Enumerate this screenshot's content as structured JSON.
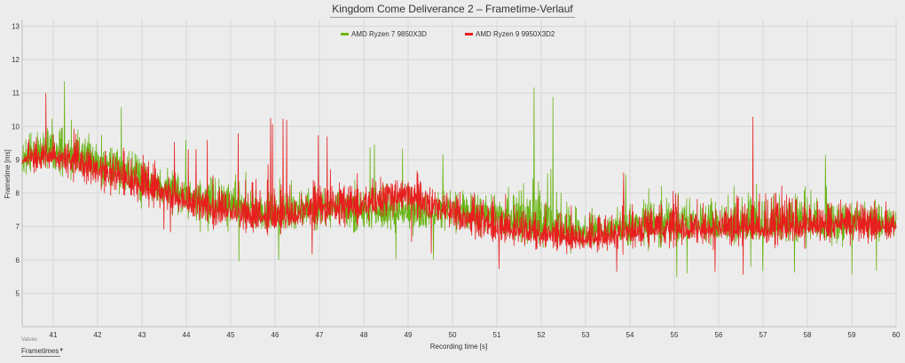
{
  "chart_data": {
    "type": "line",
    "title": "Kingdom Come Deliverance 2 – Frametime-Verlauf",
    "xlabel": "Recording time [s]",
    "ylabel": "Frametime [ms]",
    "xlim": [
      40.3,
      60
    ],
    "ylim": [
      4,
      13.2
    ],
    "xticks": [
      41,
      42,
      43,
      44,
      45,
      46,
      47,
      48,
      49,
      50,
      51,
      52,
      53,
      54,
      55,
      56,
      57,
      58,
      59,
      60
    ],
    "yticks": [
      5,
      6,
      7,
      8,
      9,
      10,
      11,
      12,
      13
    ],
    "grid": true,
    "legend_position": "top-center",
    "series": [
      {
        "name": "AMD Ryzen 7 9850X3D",
        "color": "#6ab416",
        "x": [
          40.3,
          41,
          42,
          43,
          44,
          45,
          46,
          47,
          48,
          49,
          50,
          51,
          52,
          53,
          54,
          55,
          56,
          57,
          58,
          59,
          60
        ],
        "mean": [
          9.1,
          9.2,
          8.9,
          8.4,
          7.9,
          7.6,
          7.4,
          7.6,
          7.5,
          7.4,
          7.5,
          7.3,
          6.9,
          6.8,
          7.0,
          7.1,
          7.0,
          7.0,
          7.1,
          7.2,
          7.1
        ],
        "min": [
          7.6,
          7.5,
          7.2,
          6.6,
          6.2,
          5.9,
          5.9,
          6.0,
          5.8,
          5.9,
          5.8,
          5.4,
          5.5,
          5.5,
          5.6,
          5.4,
          5.6,
          5.6,
          5.6,
          5.5,
          5.8
        ],
        "max": [
          10.9,
          11.7,
          11.0,
          10.3,
          9.6,
          10.1,
          9.5,
          9.4,
          9.5,
          9.5,
          9.2,
          8.9,
          12.0,
          8.6,
          8.7,
          9.5,
          9.3,
          10.1,
          9.3,
          9.1,
          8.6
        ]
      },
      {
        "name": "AMD Ryzen 9 9950X3D2",
        "color": "#e81e1e",
        "x": [
          40.3,
          41,
          42,
          43,
          44,
          45,
          46,
          47,
          48,
          49,
          50,
          51,
          52,
          53,
          54,
          55,
          56,
          57,
          58,
          59,
          60
        ],
        "mean": [
          9.0,
          9.1,
          8.7,
          8.2,
          7.7,
          7.4,
          7.2,
          7.5,
          7.6,
          8.0,
          7.4,
          7.0,
          6.7,
          6.6,
          6.8,
          6.9,
          6.9,
          6.9,
          7.0,
          7.1,
          7.0
        ],
        "min": [
          7.9,
          7.8,
          7.3,
          7.0,
          6.6,
          6.1,
          6.0,
          6.1,
          6.3,
          6.4,
          6.0,
          5.7,
          5.6,
          5.6,
          5.6,
          5.7,
          5.5,
          5.6,
          5.7,
          5.6,
          5.9
        ],
        "max": [
          10.8,
          11.1,
          10.6,
          10.5,
          9.4,
          9.8,
          10.3,
          9.9,
          9.9,
          9.8,
          9.2,
          9.4,
          9.1,
          8.7,
          8.8,
          10.0,
          8.7,
          10.9,
          9.3,
          8.8,
          8.4
        ]
      }
    ]
  },
  "controls": {
    "values_label": "Values",
    "values_selected": "Frametimes"
  }
}
